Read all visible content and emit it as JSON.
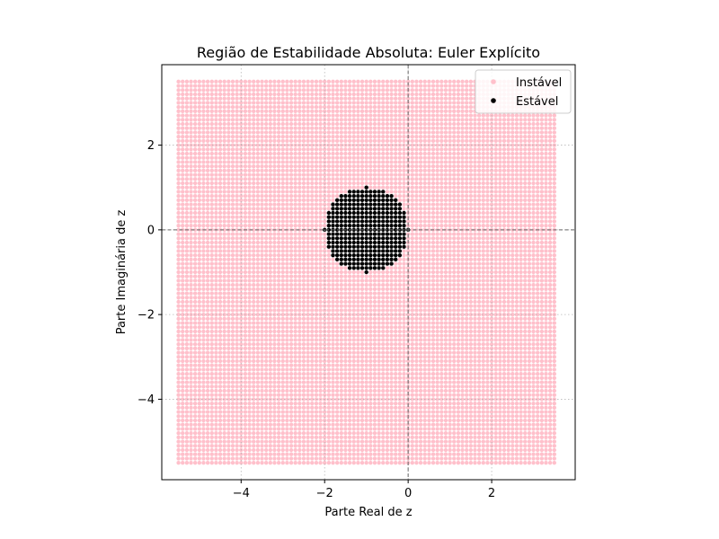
{
  "chart_data": {
    "type": "scatter",
    "title": "Região de Estabilidade Absoluta: Euler Explícito",
    "xlabel": "Parte Real de z",
    "ylabel": "Parte Imaginária de z",
    "xlim": [
      -5.9,
      4.0
    ],
    "ylim": [
      -5.9,
      3.9
    ],
    "xticks": [
      -4,
      -2,
      0,
      2
    ],
    "yticks": [
      -4,
      -2,
      0,
      2
    ],
    "tick_labels_x": [
      "−4",
      "−2",
      "0",
      "2"
    ],
    "tick_labels_y": [
      "−4",
      "−2",
      "0",
      "2"
    ],
    "grid": true,
    "reference_lines": {
      "x": 0,
      "y": 0,
      "style": "dashed"
    },
    "legend_placement": "top-right",
    "grid_sampling": {
      "x_min": -5.5,
      "x_max": 3.5,
      "y_min": -5.5,
      "y_max": 3.5,
      "step": 0.1
    },
    "stability_condition": "|1 + z| <= 1",
    "series": [
      {
        "name": "Instável",
        "color": "#ffc0cb",
        "marker": "circle"
      },
      {
        "name": "Estável",
        "color": "#000000",
        "marker": "circle"
      }
    ]
  }
}
